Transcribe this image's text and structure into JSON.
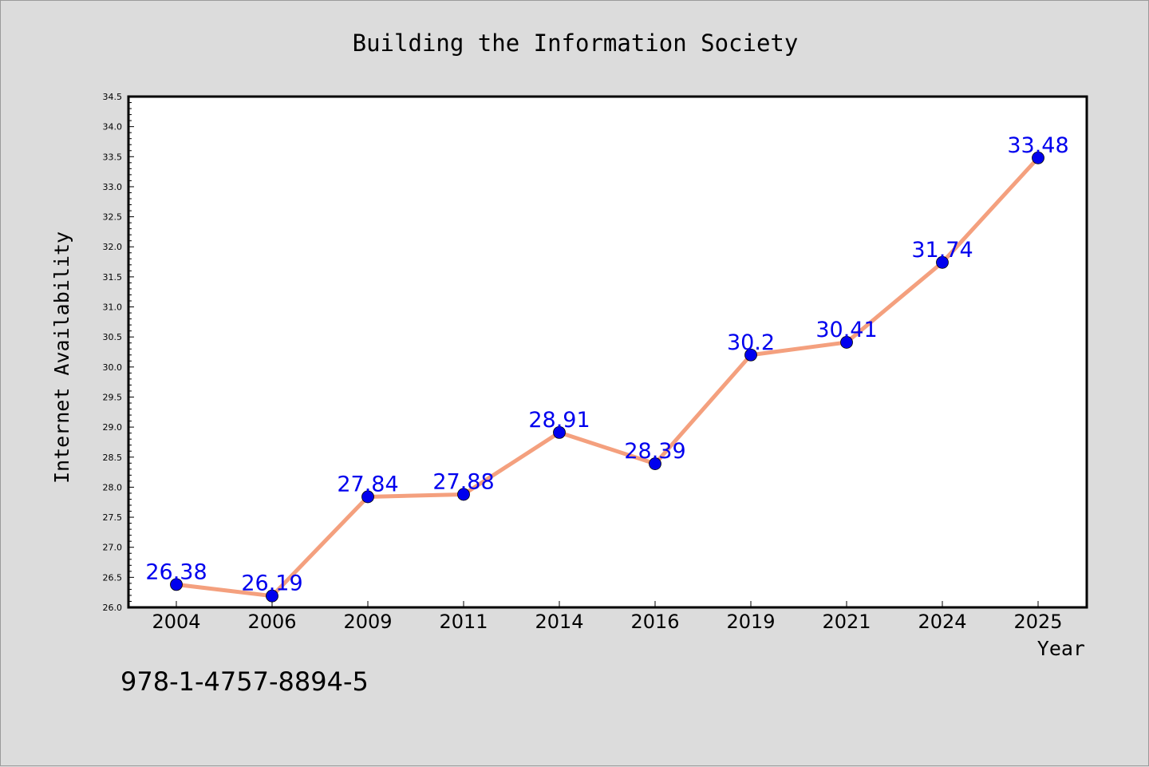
{
  "chart_data": {
    "type": "line",
    "title": "Building the Information Society",
    "xlabel": "Year",
    "ylabel": "Internet Availability",
    "categories": [
      "2004",
      "2006",
      "2009",
      "2011",
      "2014",
      "2016",
      "2019",
      "2021",
      "2024",
      "2025"
    ],
    "values": [
      26.38,
      26.19,
      27.84,
      27.88,
      28.91,
      28.39,
      30.2,
      30.41,
      31.74,
      33.48
    ],
    "data_labels": [
      "26.38",
      "26.19",
      "27.84",
      "27.88",
      "28.91",
      "28.39",
      "30.2",
      "30.41",
      "31.74",
      "33.48"
    ],
    "ylim": [
      26.0,
      34.5
    ],
    "yticks": [
      "26.0",
      "26.5",
      "27.0",
      "27.5",
      "28.0",
      "28.5",
      "29.0",
      "29.5",
      "30.0",
      "30.5",
      "31.0",
      "31.5",
      "32.0",
      "32.5",
      "33.0",
      "33.5",
      "34.0",
      "34.5"
    ],
    "grid": false,
    "line_color": "#f4a07e",
    "marker_color": "#0000ee",
    "label_color": "#0000ee"
  },
  "footer": {
    "isbn": "978-1-4757-8894-5"
  }
}
